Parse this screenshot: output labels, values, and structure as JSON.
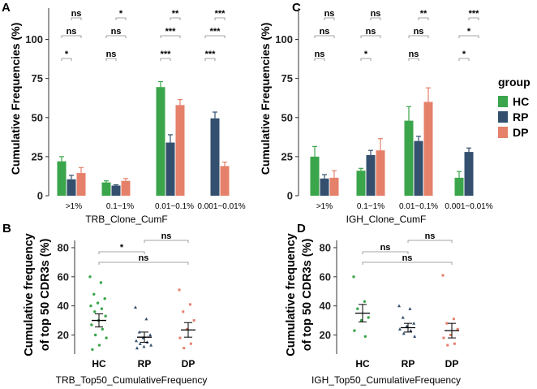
{
  "colors": {
    "HC": "#3aa54a",
    "RP": "#34506e",
    "DP": "#e5806a"
  },
  "legend": {
    "title": "group",
    "items": [
      "HC",
      "RP",
      "DP"
    ]
  },
  "chart_data": [
    {
      "panel": "A",
      "type": "bar",
      "xlabel": "TRB_Clone_CumF",
      "ylabel": "Cumulative Frequencies (%)",
      "categories": [
        ">1%",
        "0.1~1%",
        "0.01~0.1%",
        "0.001~0.01%"
      ],
      "ylim": [
        0,
        120
      ],
      "yticks": [
        0,
        25,
        50,
        75,
        100
      ],
      "series": [
        {
          "name": "HC",
          "values": [
            22,
            8.5,
            69.5,
            null
          ],
          "errors": [
            3,
            1,
            3.5,
            null
          ]
        },
        {
          "name": "RP",
          "values": [
            10.5,
            6.5,
            34,
            49.5
          ],
          "errors": [
            2.5,
            0.5,
            5,
            4
          ]
        },
        {
          "name": "DP",
          "values": [
            14.5,
            9.5,
            58,
            19
          ],
          "errors": [
            3.5,
            1.5,
            3.5,
            2.5
          ]
        }
      ],
      "significance": [
        [
          "*",
          "ns",
          "ns"
        ],
        [
          "ns",
          "ns",
          "*"
        ],
        [
          "***",
          "***",
          "**"
        ],
        [
          "***",
          "***",
          "***"
        ]
      ]
    },
    {
      "panel": "C",
      "type": "bar",
      "xlabel": "IGH_Clone_CumF",
      "ylabel": "Cumulative Frequencies (%)",
      "categories": [
        ">1%",
        "0.1~1%",
        "0.01~0.1%",
        "0.001~0.01%"
      ],
      "ylim": [
        0,
        120
      ],
      "yticks": [
        0,
        25,
        50,
        75,
        100
      ],
      "series": [
        {
          "name": "HC",
          "values": [
            25,
            16,
            48,
            11.5
          ],
          "errors": [
            6.5,
            1.5,
            9,
            4
          ]
        },
        {
          "name": "RP",
          "values": [
            11,
            26,
            35,
            28
          ],
          "errors": [
            2.5,
            3,
            3,
            2.5
          ]
        },
        {
          "name": "DP",
          "values": [
            11.5,
            29,
            60,
            null
          ],
          "errors": [
            4.5,
            7.5,
            9,
            null
          ]
        }
      ],
      "significance": [
        [
          "ns",
          "ns",
          "ns"
        ],
        [
          "*",
          "ns",
          "ns"
        ],
        [
          "ns",
          "ns",
          "**"
        ],
        [
          "*",
          "*",
          "***"
        ]
      ]
    },
    {
      "panel": "B",
      "type": "scatter",
      "xlabel": "TRB_Top50_CumulativeFrequency",
      "ylabel": [
        "Cumulative frequency",
        "of top 50 CDR3s (%)"
      ],
      "categories": [
        "HC",
        "RP",
        "DP"
      ],
      "ylim": [
        8,
        85
      ],
      "yticks": [
        20,
        40,
        60,
        80
      ],
      "points": {
        "HC": [
          60,
          56,
          48,
          45,
          42,
          40,
          38,
          36,
          33,
          30,
          27,
          24,
          20,
          18,
          13,
          10
        ],
        "RP": [
          39,
          31,
          22,
          20,
          18,
          16,
          15,
          14,
          13,
          12,
          11
        ],
        "DP": [
          51,
          41,
          36,
          30,
          24,
          18,
          14,
          11
        ]
      },
      "means": {
        "HC": 30,
        "RP": 18.5,
        "DP": 23.5
      },
      "errors": {
        "HC": 4.5,
        "RP": 3.5,
        "DP": 5
      },
      "comparisons": [
        {
          "pair": [
            "HC",
            "RP"
          ],
          "label": "*"
        },
        {
          "pair": [
            "HC",
            "DP"
          ],
          "label": "ns"
        },
        {
          "pair": [
            "RP",
            "DP"
          ],
          "label": "ns"
        }
      ]
    },
    {
      "panel": "D",
      "type": "scatter",
      "xlabel": "IGH_Top50_CumulativeFrequency",
      "ylabel": [
        "Cumulative frequency",
        "of top 50 CDR3s (%)"
      ],
      "categories": [
        "HC",
        "RP",
        "DP"
      ],
      "ylim": [
        8,
        85
      ],
      "yticks": [
        20,
        40,
        60,
        80
      ],
      "points": {
        "HC": [
          60,
          43,
          38,
          32,
          30,
          23,
          19
        ],
        "RP": [
          40,
          38,
          32,
          28,
          26,
          24,
          23,
          21,
          19
        ],
        "DP": [
          61,
          31,
          28,
          24,
          20,
          18,
          14,
          13
        ]
      },
      "means": {
        "HC": 35,
        "RP": 25,
        "DP": 23
      },
      "errors": {
        "HC": 6,
        "RP": 3,
        "DP": 5
      },
      "comparisons": [
        {
          "pair": [
            "HC",
            "RP"
          ],
          "label": "ns"
        },
        {
          "pair": [
            "HC",
            "DP"
          ],
          "label": "ns"
        },
        {
          "pair": [
            "RP",
            "DP"
          ],
          "label": "ns"
        }
      ]
    }
  ]
}
